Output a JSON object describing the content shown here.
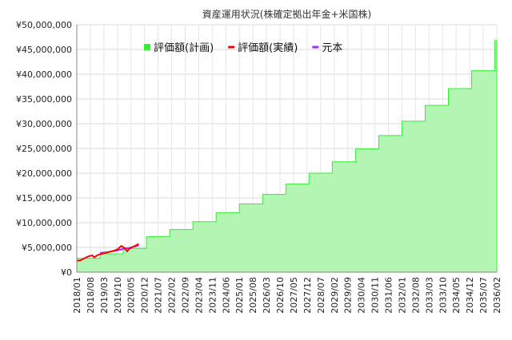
{
  "chart_data": {
    "type": "area",
    "title": "資産運用状況(株確定拠出年金+米国株)",
    "xlabel": "",
    "ylabel": "",
    "ylim": [
      0,
      50000000
    ],
    "grid": true,
    "legend_position": "top-center",
    "y_ticks": [
      "¥0",
      "¥5,000,000",
      "¥10,000,000",
      "¥15,000,000",
      "¥20,000,000",
      "¥25,000,000",
      "¥30,000,000",
      "¥35,000,000",
      "¥40,000,000",
      "¥45,000,000",
      "¥50,000,000"
    ],
    "x_ticks": [
      "2018/01",
      "2018/08",
      "2019/03",
      "2019/10",
      "2020/05",
      "2020/12",
      "2021/07",
      "2022/02",
      "2022/09",
      "2023/04",
      "2023/11",
      "2024/06",
      "2025/01",
      "2025/08",
      "2026/03",
      "2026/10",
      "2027/05",
      "2027/12",
      "2028/07",
      "2029/02",
      "2029/09",
      "2030/04",
      "2030/11",
      "2031/06",
      "2032/01",
      "2032/08",
      "2033/03",
      "2033/10",
      "2034/05",
      "2034/12",
      "2035/07",
      "2036/02"
    ],
    "x_start": "2018/01",
    "x_end": "2036/02",
    "series": [
      {
        "name": "評価額(計画)",
        "color": "#33ee33",
        "fill": "#b3f5b3",
        "kind": "step-area",
        "steps": [
          {
            "from": "2018/01",
            "value": 2800000
          },
          {
            "from": "2019/01",
            "value": 3700000
          },
          {
            "from": "2020/01",
            "value": 4800000
          },
          {
            "from": "2021/01",
            "value": 7200000
          },
          {
            "from": "2022/01",
            "value": 8600000
          },
          {
            "from": "2023/01",
            "value": 10200000
          },
          {
            "from": "2024/01",
            "value": 12000000
          },
          {
            "from": "2025/01",
            "value": 13800000
          },
          {
            "from": "2026/01",
            "value": 15700000
          },
          {
            "from": "2027/01",
            "value": 17800000
          },
          {
            "from": "2028/01",
            "value": 20000000
          },
          {
            "from": "2029/01",
            "value": 22300000
          },
          {
            "from": "2030/01",
            "value": 24900000
          },
          {
            "from": "2031/01",
            "value": 27600000
          },
          {
            "from": "2032/01",
            "value": 30500000
          },
          {
            "from": "2033/01",
            "value": 33700000
          },
          {
            "from": "2034/01",
            "value": 37100000
          },
          {
            "from": "2035/01",
            "value": 40700000
          },
          {
            "from": "2036/01",
            "value": 46800000
          }
        ]
      },
      {
        "name": "評価額(実績)",
        "color": "#ff0000",
        "kind": "line",
        "points": [
          {
            "x": "2018/01",
            "y": 2300000
          },
          {
            "x": "2018/03",
            "y": 2400000
          },
          {
            "x": "2018/05",
            "y": 2800000
          },
          {
            "x": "2018/07",
            "y": 3200000
          },
          {
            "x": "2018/09",
            "y": 3400000
          },
          {
            "x": "2018/10",
            "y": 3000000
          },
          {
            "x": "2018/12",
            "y": 3500000
          },
          {
            "x": "2019/02",
            "y": 3700000
          },
          {
            "x": "2019/04",
            "y": 3900000
          },
          {
            "x": "2019/06",
            "y": 4100000
          },
          {
            "x": "2019/08",
            "y": 4300000
          },
          {
            "x": "2019/10",
            "y": 4600000
          },
          {
            "x": "2019/12",
            "y": 5300000
          },
          {
            "x": "2020/02",
            "y": 4800000
          },
          {
            "x": "2020/03",
            "y": 4200000
          },
          {
            "x": "2020/04",
            "y": 4700000
          },
          {
            "x": "2020/06",
            "y": 5100000
          },
          {
            "x": "2020/08",
            "y": 5500000
          },
          {
            "x": "2020/09",
            "y": 5700000
          }
        ]
      },
      {
        "name": "元本",
        "color": "#9b30ff",
        "kind": "line",
        "points": [
          {
            "x": "2019/01",
            "y": 3900000
          },
          {
            "x": "2019/04",
            "y": 4000000
          },
          {
            "x": "2019/07",
            "y": 4200000
          },
          {
            "x": "2019/10",
            "y": 4400000
          },
          {
            "x": "2020/01",
            "y": 4700000
          },
          {
            "x": "2020/04",
            "y": 4900000
          },
          {
            "x": "2020/07",
            "y": 5200000
          },
          {
            "x": "2020/09",
            "y": 5400000
          }
        ]
      }
    ]
  }
}
